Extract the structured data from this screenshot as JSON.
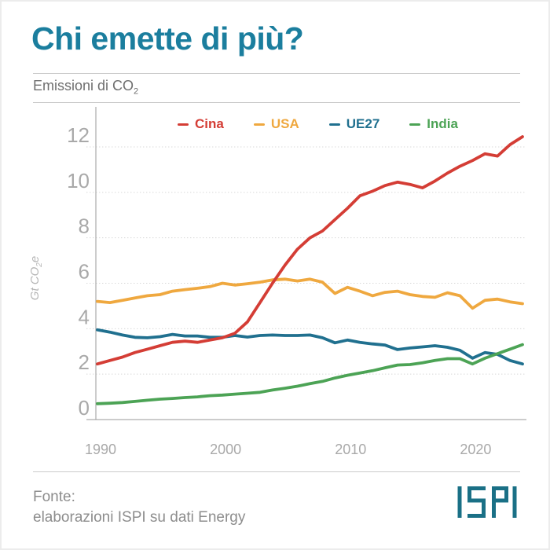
{
  "header": {
    "title": "Chi emette di più?",
    "subtitle_main": "Emissioni di CO",
    "subtitle_sub": "2"
  },
  "colors": {
    "title": "#1b7e9e",
    "logo": "#1a7086"
  },
  "chart_data": {
    "type": "line",
    "title": "Chi emette di più?",
    "subtitle": "Emissioni di CO2",
    "ylabel_main": "Gt CO",
    "ylabel_sub": "2",
    "ylabel_tail": "e",
    "x": [
      1990,
      1991,
      1992,
      1993,
      1994,
      1995,
      1996,
      1997,
      1998,
      1999,
      2000,
      2001,
      2002,
      2003,
      2004,
      2005,
      2006,
      2007,
      2008,
      2009,
      2010,
      2011,
      2012,
      2013,
      2014,
      2015,
      2016,
      2017,
      2018,
      2019,
      2020,
      2021,
      2022,
      2023,
      2024
    ],
    "xticks": [
      1990,
      2000,
      2010,
      2020
    ],
    "yticks": [
      0,
      2,
      4,
      6,
      8,
      10,
      12
    ],
    "ylim": [
      0,
      12
    ],
    "grid": "dotted-horizontal",
    "legend_position": "top",
    "series": [
      {
        "name": "Cina",
        "color": "#d43d35",
        "z": 4,
        "values": [
          2.45,
          2.6,
          2.75,
          2.95,
          3.1,
          3.25,
          3.4,
          3.45,
          3.4,
          3.5,
          3.6,
          3.8,
          4.3,
          5.15,
          6.0,
          6.8,
          7.5,
          8.0,
          8.3,
          8.8,
          9.3,
          9.85,
          10.05,
          10.3,
          10.45,
          10.35,
          10.2,
          10.5,
          10.85,
          11.15,
          11.4,
          11.7,
          11.6,
          12.1,
          12.45
        ]
      },
      {
        "name": "USA",
        "color": "#efa83f",
        "z": 1,
        "values": [
          5.2,
          5.15,
          5.25,
          5.35,
          5.45,
          5.5,
          5.65,
          5.72,
          5.78,
          5.85,
          6.0,
          5.92,
          5.98,
          6.05,
          6.15,
          6.18,
          6.1,
          6.18,
          6.05,
          5.55,
          5.82,
          5.65,
          5.45,
          5.6,
          5.65,
          5.5,
          5.42,
          5.38,
          5.58,
          5.45,
          4.9,
          5.25,
          5.3,
          5.18,
          5.1
        ]
      },
      {
        "name": "UE27",
        "color": "#20708f",
        "z": 2,
        "values": [
          3.95,
          3.85,
          3.72,
          3.62,
          3.6,
          3.65,
          3.75,
          3.68,
          3.68,
          3.62,
          3.62,
          3.7,
          3.63,
          3.7,
          3.72,
          3.7,
          3.7,
          3.72,
          3.6,
          3.38,
          3.5,
          3.4,
          3.33,
          3.28,
          3.08,
          3.15,
          3.2,
          3.25,
          3.18,
          3.05,
          2.7,
          2.95,
          2.87,
          2.6,
          2.45
        ]
      },
      {
        "name": "India",
        "color": "#4ca355",
        "z": 3,
        "values": [
          0.7,
          0.72,
          0.75,
          0.8,
          0.85,
          0.9,
          0.93,
          0.97,
          1.0,
          1.05,
          1.08,
          1.12,
          1.16,
          1.2,
          1.3,
          1.38,
          1.47,
          1.58,
          1.68,
          1.83,
          1.95,
          2.05,
          2.15,
          2.28,
          2.4,
          2.42,
          2.5,
          2.6,
          2.68,
          2.68,
          2.45,
          2.7,
          2.9,
          3.1,
          3.3
        ]
      }
    ]
  },
  "footer": {
    "source_line1": "Fonte:",
    "source_line2": "elaborazioni ISPI su dati Energy",
    "logo_text": "ISPI"
  }
}
